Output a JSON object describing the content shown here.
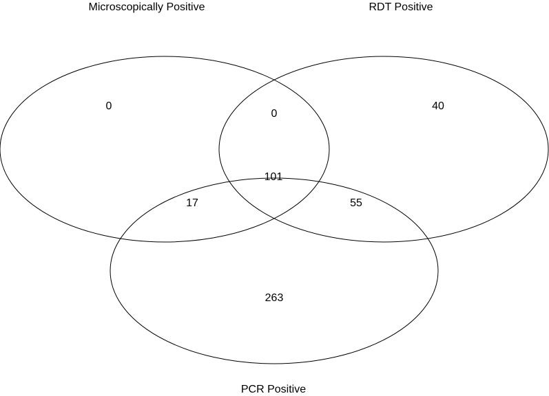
{
  "sets": {
    "microscopy": {
      "label": "Microscopically Positive"
    },
    "rdt": {
      "label": "RDT Positive"
    },
    "pcr": {
      "label": "PCR Positive"
    }
  },
  "regions": {
    "microscopy_only": 0,
    "rdt_only": 40,
    "microscopy_rdt": 0,
    "all_three": 101,
    "microscopy_pcr": 17,
    "rdt_pcr": 55,
    "pcr_only": 263
  },
  "colors": {
    "outline": "#000000",
    "text": "#000000",
    "background": "#ffffff"
  }
}
